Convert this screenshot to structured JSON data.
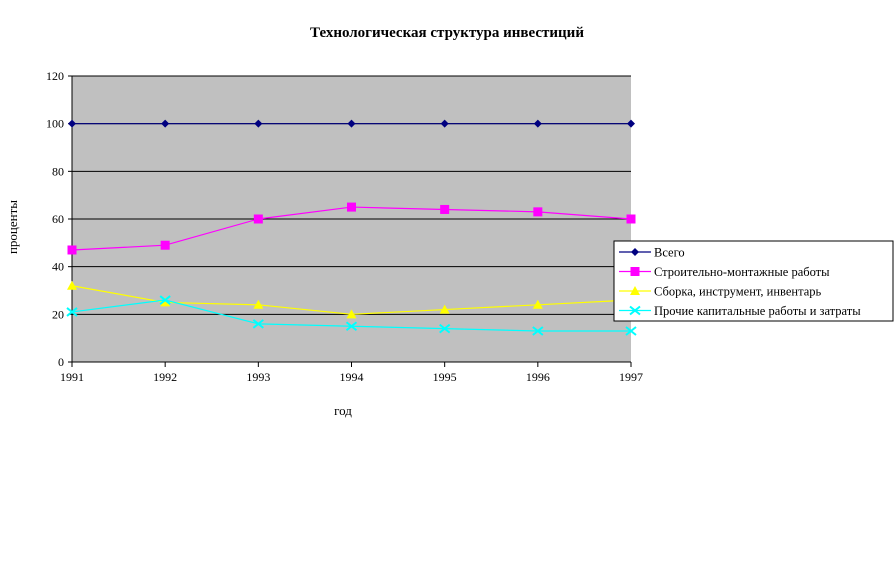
{
  "chart_data": {
    "type": "line",
    "title": "Технологическая структура инвестиций",
    "xlabel": "год",
    "ylabel": "проценты",
    "categories": [
      "1991",
      "1992",
      "1993",
      "1994",
      "1995",
      "1996",
      "1997"
    ],
    "ylim": [
      0,
      120
    ],
    "yticks": [
      "0",
      "20",
      "40",
      "60",
      "80",
      "100",
      "120"
    ],
    "grid": true,
    "legend_position": "right",
    "series": [
      {
        "name": "Всего",
        "color": "#000080",
        "marker": "diamond",
        "values": [
          100,
          100,
          100,
          100,
          100,
          100,
          100
        ]
      },
      {
        "name": "Строительно-монтажные работы",
        "color": "#FF00FF",
        "marker": "square",
        "values": [
          47,
          49,
          60,
          65,
          64,
          63,
          60
        ]
      },
      {
        "name": "Сборка, инструмент, инвентарь",
        "color": "#FFFF00",
        "marker": "triangle",
        "values": [
          32,
          25,
          24,
          20,
          22,
          24,
          26
        ]
      },
      {
        "name": "Прочие капитальные работы и затраты",
        "color": "#00FFFF",
        "marker": "bowtie",
        "values": [
          21,
          26,
          16,
          15,
          14,
          13,
          13
        ]
      }
    ],
    "plot_background": "#C0C0C0"
  }
}
